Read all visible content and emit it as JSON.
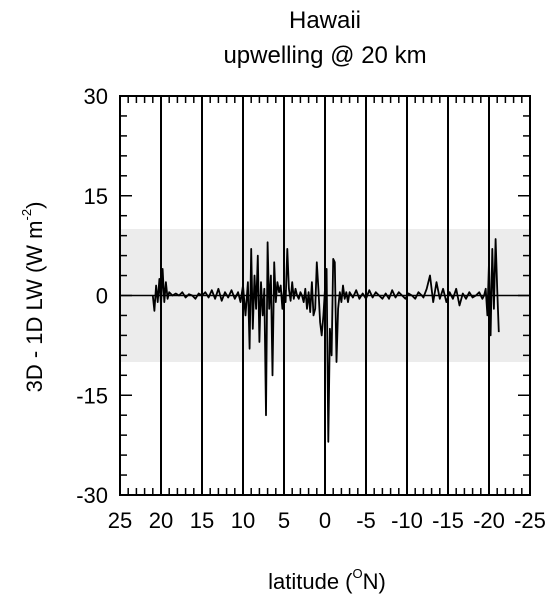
{
  "chart_data": {
    "type": "line",
    "title": "Hawaii",
    "subtitle": "upwelling @ 20 km",
    "ylabel": "3D - 1D LW (W m",
    "ylabel_sup": "-2",
    "ylabel_end": ")",
    "xlabel": "latitude (",
    "xlabel_sup": "O",
    "xlabel_end": "N)",
    "xlim": [
      25,
      -25
    ],
    "ylim": [
      -30,
      30
    ],
    "x_ticks": [
      25,
      20,
      15,
      10,
      5,
      0,
      -5,
      -10,
      -15,
      -20,
      -25
    ],
    "x_tick_labels": [
      "25",
      "20",
      "15",
      "10",
      "5",
      "0",
      "-5",
      "-10",
      "-15",
      "-20",
      "-25"
    ],
    "y_ticks": [
      30,
      15,
      0,
      -15,
      -30
    ],
    "y_tick_labels": [
      "30",
      "15",
      "0",
      "-15",
      "-30"
    ],
    "shaded_band": [
      -10,
      10
    ],
    "shade_color": "#ececec",
    "line_color": "#000000",
    "vertical_gridlines_at": [
      20,
      15,
      10,
      5,
      0,
      -5,
      -10,
      -15,
      -20
    ],
    "zero_line": true,
    "series": [
      {
        "x": [
          21.0,
          20.8,
          20.6,
          20.4,
          20.2,
          20.0,
          19.8,
          19.6,
          19.4,
          19.2,
          19.0,
          18.6,
          18.2,
          17.8,
          17.4,
          17.0,
          16.6,
          16.2,
          15.8,
          15.4,
          15.0,
          14.6,
          14.2,
          13.8,
          13.4,
          13.0,
          12.6,
          12.2,
          11.8,
          11.4,
          11.0,
          10.6,
          10.3,
          10.0,
          9.7,
          9.4,
          9.2,
          9.0,
          8.8,
          8.6,
          8.4,
          8.2,
          8.0,
          7.8,
          7.6,
          7.4,
          7.2,
          7.0,
          6.8,
          6.6,
          6.4,
          6.2,
          6.0,
          5.8,
          5.6,
          5.4,
          5.2,
          5.0,
          4.8,
          4.6,
          4.4,
          4.2,
          4.0,
          3.8,
          3.6,
          3.4,
          3.2,
          3.0,
          2.8,
          2.6,
          2.4,
          2.2,
          2.0,
          1.8,
          1.6,
          1.4,
          1.2,
          1.0,
          0.8,
          0.6,
          0.4,
          0.2,
          0.0,
          -0.2,
          -0.4,
          -0.6,
          -0.8,
          -1.0,
          -1.2,
          -1.4,
          -1.6,
          -1.8,
          -2.0,
          -2.2,
          -2.4,
          -2.6,
          -2.8,
          -3.0,
          -3.4,
          -3.8,
          -4.2,
          -4.6,
          -5.0,
          -5.4,
          -5.8,
          -6.2,
          -6.6,
          -7.0,
          -7.4,
          -7.8,
          -8.2,
          -8.6,
          -9.0,
          -9.4,
          -9.8,
          -10.2,
          -10.6,
          -11.0,
          -11.4,
          -11.8,
          -12.0,
          -12.4,
          -12.8,
          -13.2,
          -13.6,
          -14.0,
          -14.4,
          -14.8,
          -15.2,
          -15.6,
          -16.0,
          -16.4,
          -16.8,
          -17.2,
          -17.6,
          -18.0,
          -18.4,
          -18.8,
          -19.2,
          -19.4,
          -19.6,
          -19.8,
          -20.0,
          -20.2,
          -20.4,
          -20.6,
          -20.8,
          -21.0,
          -21.2
        ],
        "y": [
          0.0,
          -2.3,
          1.5,
          -1.0,
          2.5,
          -1.5,
          4.0,
          -1.0,
          2.0,
          -0.5,
          0.5,
          0.0,
          0.3,
          0.0,
          0.5,
          -0.3,
          0.2,
          0.0,
          -0.5,
          0.3,
          0.0,
          0.5,
          -0.3,
          0.8,
          -0.5,
          1.0,
          -0.8,
          0.5,
          -0.3,
          0.8,
          -0.5,
          0.5,
          -1.0,
          1.5,
          -3.0,
          2.0,
          -8.0,
          7.0,
          -5.0,
          3.0,
          -2.0,
          6.0,
          -7.0,
          2.0,
          -3.0,
          1.0,
          -18.0,
          8.0,
          -2.0,
          3.0,
          -12.0,
          5.0,
          -1.0,
          2.0,
          0.5,
          1.5,
          -2.0,
          1.0,
          -1.0,
          7.0,
          1.0,
          -0.8,
          2.0,
          -0.5,
          1.0,
          0.0,
          -0.5,
          0.5,
          0.0,
          -1.0,
          1.0,
          -2.0,
          0.5,
          -2.5,
          2.0,
          -3.0,
          -2.0,
          5.0,
          1.0,
          -4.0,
          -6.0,
          -3.0,
          1.0,
          4.0,
          -22.0,
          -5.0,
          -9.0,
          5.5,
          5.0,
          -10.0,
          -2.0,
          0.5,
          -1.0,
          1.5,
          -0.5,
          0.5,
          -1.0,
          0.5,
          -0.3,
          0.8,
          -0.5,
          0.3,
          -0.5,
          0.8,
          -0.3,
          0.5,
          0.0,
          -0.5,
          0.3,
          -0.5,
          0.8,
          -0.3,
          0.5,
          0.0,
          -0.5,
          0.3,
          0.0,
          -0.5,
          0.5,
          0.0,
          -0.3,
          1.0,
          3.0,
          -1.0,
          2.0,
          -0.5,
          1.0,
          -1.0,
          0.5,
          -0.5,
          1.0,
          -1.5,
          0.3,
          -0.5,
          0.5,
          -0.3,
          0.0,
          0.5,
          -0.5,
          0.0,
          1.0,
          -3.0,
          5.0,
          -6.0,
          7.0,
          -2.0,
          8.5,
          1.0,
          -5.5
        ]
      }
    ]
  }
}
